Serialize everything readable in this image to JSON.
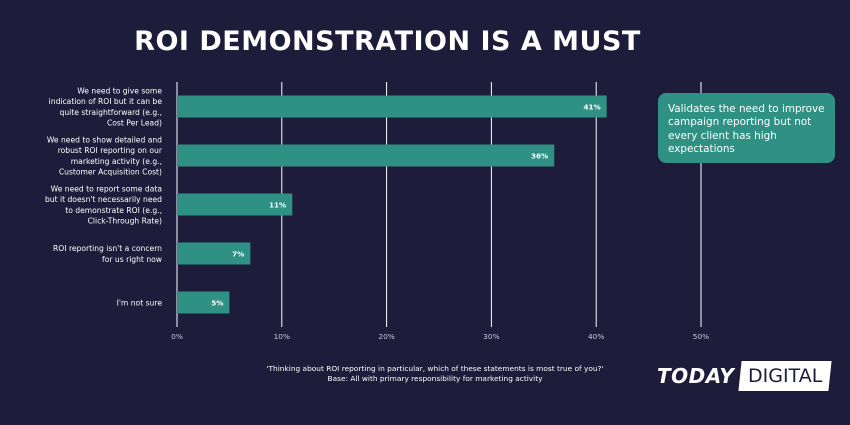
{
  "title": "ROI DEMONSTRATION IS A MUST",
  "callout": "Validates the need to improve campaign reporting but not every client has high expectations",
  "footnote": {
    "question": "'Thinking about ROI reporting in particular, which of these statements is most true of you?'",
    "base": "Base: All with primary responsibility for marketing activity"
  },
  "logo": {
    "left": "TODAY",
    "right": "DIGITAL"
  },
  "colors": {
    "background": "#1d1c3a",
    "bar": "#2f9184",
    "grid": "#ffffff"
  },
  "chart_data": {
    "type": "bar",
    "orientation": "horizontal",
    "categories": [
      [
        "We need to give some",
        "indication of ROI but it can be",
        "quite straightforward (e.g.,",
        "Cost Per Lead)"
      ],
      [
        "We need to show detailed and",
        "robust ROI reporting on our",
        "marketing activity (e.g.,",
        "Customer Acquisition Cost)"
      ],
      [
        "We need to report some data",
        "but it doesn't necessarily need",
        "to demonstrate ROI (e.g.,",
        "Click-Through Rate)"
      ],
      [
        "ROI reporting isn't a concern",
        "for us right now"
      ],
      [
        "I'm not sure"
      ]
    ],
    "values": [
      41,
      36,
      11,
      7,
      5
    ],
    "value_labels": [
      "41%",
      "36%",
      "11%",
      "7%",
      "5%"
    ],
    "xlim": [
      0,
      50
    ],
    "xticks": [
      0,
      10,
      20,
      30,
      40,
      50
    ],
    "xtick_labels": [
      "0%",
      "10%",
      "20%",
      "30%",
      "40%",
      "50%"
    ],
    "grid": true
  }
}
